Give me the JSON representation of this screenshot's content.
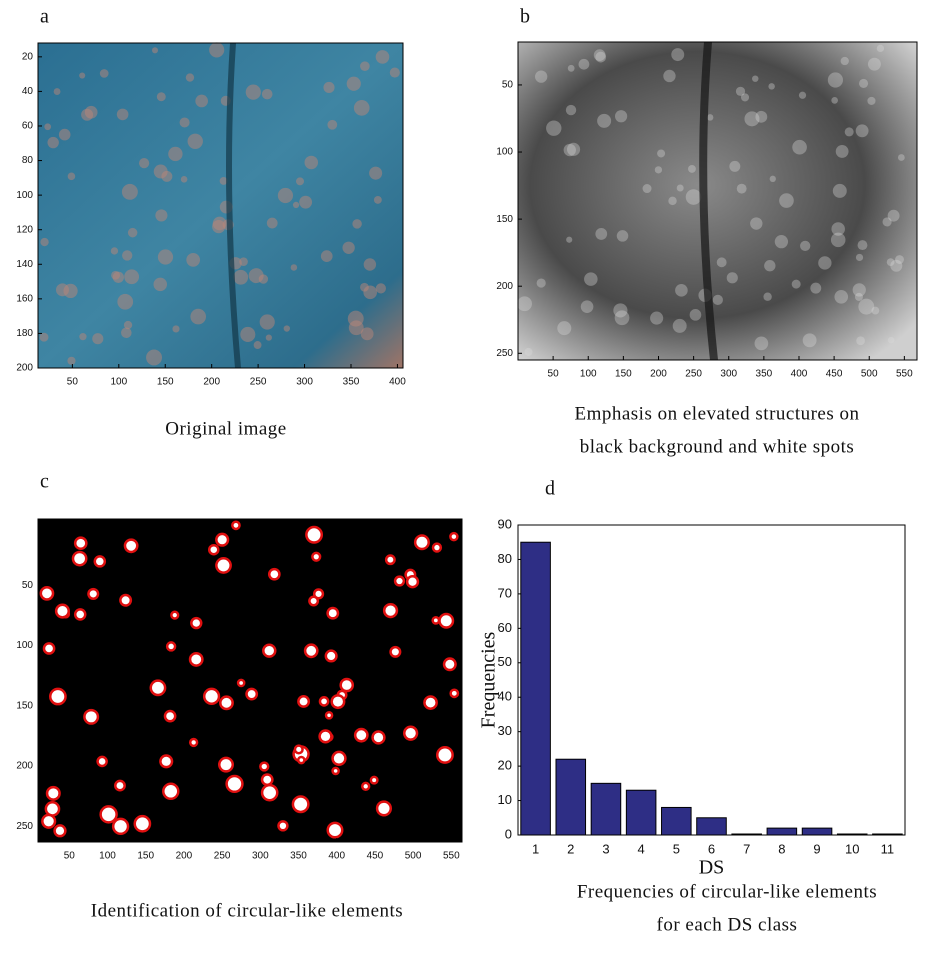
{
  "chart_data": [
    {
      "type": "image",
      "label": "a",
      "caption": [
        "Original image"
      ],
      "xlim": [
        13,
        406
      ],
      "ylim": [
        12,
        200
      ],
      "xticks": [
        50,
        100,
        150,
        200,
        250,
        300,
        350,
        400
      ],
      "yticks": [
        20,
        40,
        60,
        80,
        100,
        120,
        140,
        160,
        180,
        200
      ]
    },
    {
      "type": "image",
      "label": "b",
      "caption": [
        "Emphasis  on elevated structures on",
        "black background and white spots"
      ],
      "xlim": [
        0,
        568
      ],
      "ylim": [
        18,
        255
      ],
      "xticks": [
        50,
        100,
        150,
        200,
        250,
        300,
        350,
        400,
        450,
        500,
        550
      ],
      "yticks": [
        50,
        100,
        150,
        200,
        250
      ]
    },
    {
      "type": "image",
      "label": "c",
      "caption": [
        "Identification  of circular-like elements"
      ],
      "xlim": [
        9,
        564
      ],
      "ylim": [
        -5,
        263
      ],
      "xticks": [
        50,
        100,
        150,
        200,
        250,
        300,
        350,
        400,
        450,
        500,
        550
      ],
      "yticks": [
        50,
        100,
        150,
        200,
        250
      ]
    },
    {
      "type": "bar",
      "label": "d",
      "caption": [
        "Frequencies  of circular-like elements",
        "for each DS class"
      ],
      "categories": [
        "1",
        "2",
        "3",
        "4",
        "5",
        "6",
        "7",
        "8",
        "9",
        "10",
        "11"
      ],
      "values": [
        85,
        22,
        15,
        13,
        8,
        5,
        0,
        2,
        2,
        0,
        0
      ],
      "color": "#2e2e85",
      "ylim": [
        0,
        90
      ],
      "yticks": [
        0,
        10,
        20,
        30,
        40,
        50,
        60,
        70,
        80,
        90
      ],
      "xlabel": "DS",
      "ylabel": "Frequencies"
    }
  ]
}
